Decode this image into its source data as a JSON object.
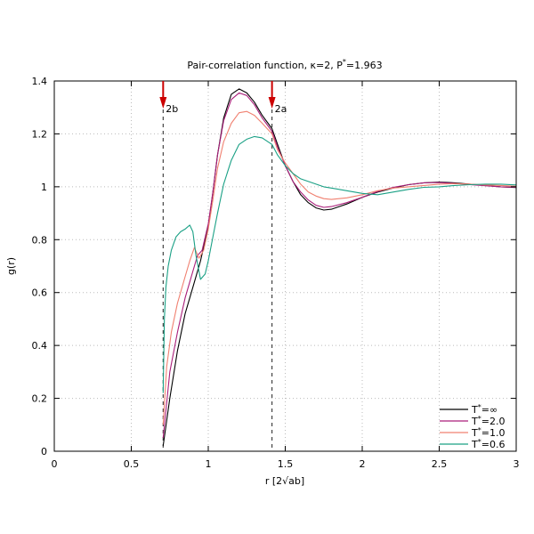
{
  "chart_data": {
    "type": "line",
    "title_main": "Pair-correlation function, κ=2, P",
    "title_sup": "*",
    "title_tail": "=1.963",
    "xlabel": "r [2√ab]",
    "ylabel": "g(r)",
    "xlim": [
      0,
      3
    ],
    "ylim": [
      0,
      1.4
    ],
    "x_ticks": [
      0,
      0.5,
      1,
      1.5,
      2,
      2.5,
      3
    ],
    "x_tick_labels": [
      "0",
      "0.5",
      "1",
      "1.5",
      "2",
      "2.5",
      "3"
    ],
    "y_ticks": [
      0,
      0.2,
      0.4,
      0.6,
      0.8,
      1.0,
      1.2,
      1.4
    ],
    "y_tick_labels": [
      "0",
      "0.2",
      "0.4",
      "0.6",
      "0.8",
      "1",
      "1.2",
      "1.4"
    ],
    "grid": true,
    "legend_position": "bottom-right",
    "annotations": [
      {
        "label": "2b",
        "x": 0.707,
        "arrow_color": "#cc0000"
      },
      {
        "label": "2a",
        "x": 1.414,
        "arrow_color": "#cc0000"
      }
    ],
    "series": [
      {
        "name_prefix": "T",
        "name_sup": "*",
        "name_suffix": "=∞",
        "color": "#000000",
        "points": [
          [
            0.707,
            0.02
          ],
          [
            0.75,
            0.2
          ],
          [
            0.8,
            0.38
          ],
          [
            0.85,
            0.52
          ],
          [
            0.9,
            0.62
          ],
          [
            0.95,
            0.72
          ],
          [
            1.0,
            0.85
          ],
          [
            1.03,
            0.98
          ],
          [
            1.06,
            1.12
          ],
          [
            1.1,
            1.26
          ],
          [
            1.15,
            1.35
          ],
          [
            1.2,
            1.37
          ],
          [
            1.25,
            1.355
          ],
          [
            1.3,
            1.32
          ],
          [
            1.35,
            1.27
          ],
          [
            1.414,
            1.22
          ],
          [
            1.45,
            1.16
          ],
          [
            1.5,
            1.08
          ],
          [
            1.55,
            1.02
          ],
          [
            1.6,
            0.97
          ],
          [
            1.65,
            0.94
          ],
          [
            1.7,
            0.92
          ],
          [
            1.75,
            0.912
          ],
          [
            1.8,
            0.915
          ],
          [
            1.9,
            0.935
          ],
          [
            2.0,
            0.96
          ],
          [
            2.1,
            0.98
          ],
          [
            2.2,
            0.995
          ],
          [
            2.3,
            1.008
          ],
          [
            2.4,
            1.015
          ],
          [
            2.5,
            1.018
          ],
          [
            2.6,
            1.015
          ],
          [
            2.7,
            1.01
          ],
          [
            2.8,
            1.005
          ],
          [
            2.9,
            1.0
          ],
          [
            3.0,
            0.997
          ]
        ]
      },
      {
        "name_prefix": "T",
        "name_sup": "*",
        "name_suffix": "=2.0",
        "color": "#aa1e7a",
        "points": [
          [
            0.707,
            0.05
          ],
          [
            0.75,
            0.3
          ],
          [
            0.8,
            0.45
          ],
          [
            0.85,
            0.58
          ],
          [
            0.9,
            0.68
          ],
          [
            0.93,
            0.74
          ],
          [
            0.96,
            0.76
          ],
          [
            1.0,
            0.86
          ],
          [
            1.03,
            0.98
          ],
          [
            1.06,
            1.12
          ],
          [
            1.1,
            1.25
          ],
          [
            1.15,
            1.33
          ],
          [
            1.2,
            1.355
          ],
          [
            1.25,
            1.345
          ],
          [
            1.3,
            1.31
          ],
          [
            1.35,
            1.26
          ],
          [
            1.414,
            1.21
          ],
          [
            1.45,
            1.15
          ],
          [
            1.5,
            1.08
          ],
          [
            1.55,
            1.02
          ],
          [
            1.6,
            0.98
          ],
          [
            1.65,
            0.95
          ],
          [
            1.7,
            0.93
          ],
          [
            1.75,
            0.922
          ],
          [
            1.8,
            0.925
          ],
          [
            1.9,
            0.94
          ],
          [
            2.0,
            0.96
          ],
          [
            2.1,
            0.982
          ],
          [
            2.2,
            0.998
          ],
          [
            2.3,
            1.008
          ],
          [
            2.4,
            1.015
          ],
          [
            2.5,
            1.016
          ],
          [
            2.6,
            1.013
          ],
          [
            2.7,
            1.008
          ],
          [
            2.8,
            1.004
          ],
          [
            2.9,
            1.0
          ],
          [
            3.0,
            0.998
          ]
        ]
      },
      {
        "name_prefix": "T",
        "name_sup": "*",
        "name_suffix": "=1.0",
        "color": "#f08070",
        "points": [
          [
            0.707,
            0.1
          ],
          [
            0.73,
            0.32
          ],
          [
            0.76,
            0.45
          ],
          [
            0.8,
            0.56
          ],
          [
            0.85,
            0.66
          ],
          [
            0.88,
            0.72
          ],
          [
            0.91,
            0.77
          ],
          [
            0.94,
            0.73
          ],
          [
            0.97,
            0.76
          ],
          [
            1.0,
            0.84
          ],
          [
            1.03,
            0.95
          ],
          [
            1.06,
            1.07
          ],
          [
            1.1,
            1.17
          ],
          [
            1.15,
            1.24
          ],
          [
            1.2,
            1.28
          ],
          [
            1.25,
            1.285
          ],
          [
            1.3,
            1.27
          ],
          [
            1.35,
            1.24
          ],
          [
            1.414,
            1.2
          ],
          [
            1.45,
            1.14
          ],
          [
            1.5,
            1.09
          ],
          [
            1.55,
            1.05
          ],
          [
            1.6,
            1.01
          ],
          [
            1.65,
            0.98
          ],
          [
            1.7,
            0.965
          ],
          [
            1.75,
            0.955
          ],
          [
            1.8,
            0.952
          ],
          [
            1.9,
            0.958
          ],
          [
            2.0,
            0.97
          ],
          [
            2.1,
            0.985
          ],
          [
            2.2,
            0.995
          ],
          [
            2.3,
            1.0
          ],
          [
            2.4,
            1.005
          ],
          [
            2.5,
            1.01
          ],
          [
            2.6,
            1.012
          ],
          [
            2.7,
            1.01
          ],
          [
            2.8,
            1.007
          ],
          [
            2.9,
            1.005
          ],
          [
            3.0,
            1.002
          ]
        ]
      },
      {
        "name_prefix": "T",
        "name_sup": "*",
        "name_suffix": "=0.6",
        "color": "#1aa085",
        "points": [
          [
            0.707,
            0.22
          ],
          [
            0.715,
            0.5
          ],
          [
            0.725,
            0.62
          ],
          [
            0.74,
            0.7
          ],
          [
            0.76,
            0.76
          ],
          [
            0.79,
            0.81
          ],
          [
            0.82,
            0.83
          ],
          [
            0.85,
            0.84
          ],
          [
            0.88,
            0.855
          ],
          [
            0.9,
            0.83
          ],
          [
            0.92,
            0.74
          ],
          [
            0.95,
            0.65
          ],
          [
            0.98,
            0.67
          ],
          [
            1.0,
            0.72
          ],
          [
            1.03,
            0.81
          ],
          [
            1.06,
            0.9
          ],
          [
            1.1,
            1.01
          ],
          [
            1.15,
            1.1
          ],
          [
            1.2,
            1.16
          ],
          [
            1.25,
            1.18
          ],
          [
            1.3,
            1.19
          ],
          [
            1.35,
            1.185
          ],
          [
            1.414,
            1.16
          ],
          [
            1.45,
            1.12
          ],
          [
            1.5,
            1.08
          ],
          [
            1.55,
            1.05
          ],
          [
            1.6,
            1.03
          ],
          [
            1.65,
            1.02
          ],
          [
            1.7,
            1.01
          ],
          [
            1.75,
            1.0
          ],
          [
            1.8,
            0.995
          ],
          [
            1.9,
            0.985
          ],
          [
            2.0,
            0.975
          ],
          [
            2.1,
            0.97
          ],
          [
            2.2,
            0.98
          ],
          [
            2.3,
            0.99
          ],
          [
            2.4,
            0.998
          ],
          [
            2.5,
            1.0
          ],
          [
            2.6,
            1.005
          ],
          [
            2.7,
            1.008
          ],
          [
            2.8,
            1.01
          ],
          [
            2.9,
            1.01
          ],
          [
            3.0,
            1.007
          ]
        ]
      }
    ]
  }
}
